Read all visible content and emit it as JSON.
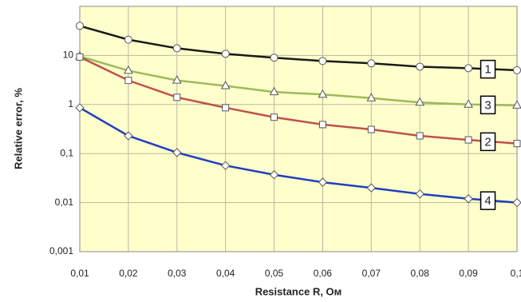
{
  "chart_data": {
    "type": "line",
    "x_label": "Resistance R, Ом",
    "y_label": "Relative error, %",
    "x": [
      0.01,
      0.02,
      0.03,
      0.04,
      0.05,
      0.06,
      0.07,
      0.08,
      0.09,
      0.1
    ],
    "xlim": [
      0.01,
      0.1
    ],
    "xticks": [
      {
        "value": 0.01,
        "label": "0,01"
      },
      {
        "value": 0.02,
        "label": "0,02"
      },
      {
        "value": 0.03,
        "label": "0,03"
      },
      {
        "value": 0.04,
        "label": "0,04"
      },
      {
        "value": 0.05,
        "label": "0,05"
      },
      {
        "value": 0.06,
        "label": "0,06"
      },
      {
        "value": 0.07,
        "label": "0,07"
      },
      {
        "value": 0.08,
        "label": "0,08"
      },
      {
        "value": 0.09,
        "label": "0,09"
      },
      {
        "value": 0.1,
        "label": "0,1"
      }
    ],
    "ylim": [
      0.001,
      100
    ],
    "yticks": [
      {
        "value": 0.001,
        "label": "0,001"
      },
      {
        "value": 0.01,
        "label": "0,01"
      },
      {
        "value": 0.1,
        "label": "0,1"
      },
      1,
      10
    ],
    "y_scale": "log",
    "grid": true,
    "series": [
      {
        "name": "1",
        "color": "#1a1a1a",
        "marker": "circle",
        "values": [
          40,
          21,
          14,
          10.8,
          9,
          7.7,
          6.9,
          5.9,
          5.5,
          5.0
        ]
      },
      {
        "name": "3",
        "color": "#9bbb59",
        "marker": "triangle",
        "values": [
          9.6,
          4.9,
          3.1,
          2.4,
          1.8,
          1.6,
          1.35,
          1.1,
          1.0,
          0.96
        ]
      },
      {
        "name": "2",
        "color": "#c0504d",
        "marker": "square",
        "values": [
          9.3,
          3.1,
          1.4,
          0.86,
          0.55,
          0.39,
          0.31,
          0.23,
          0.19,
          0.16
        ]
      },
      {
        "name": "4",
        "color": "#1f3fbf",
        "marker": "diamond",
        "values": [
          0.86,
          0.23,
          0.105,
          0.057,
          0.037,
          0.026,
          0.02,
          0.015,
          0.012,
          0.01
        ]
      }
    ]
  }
}
